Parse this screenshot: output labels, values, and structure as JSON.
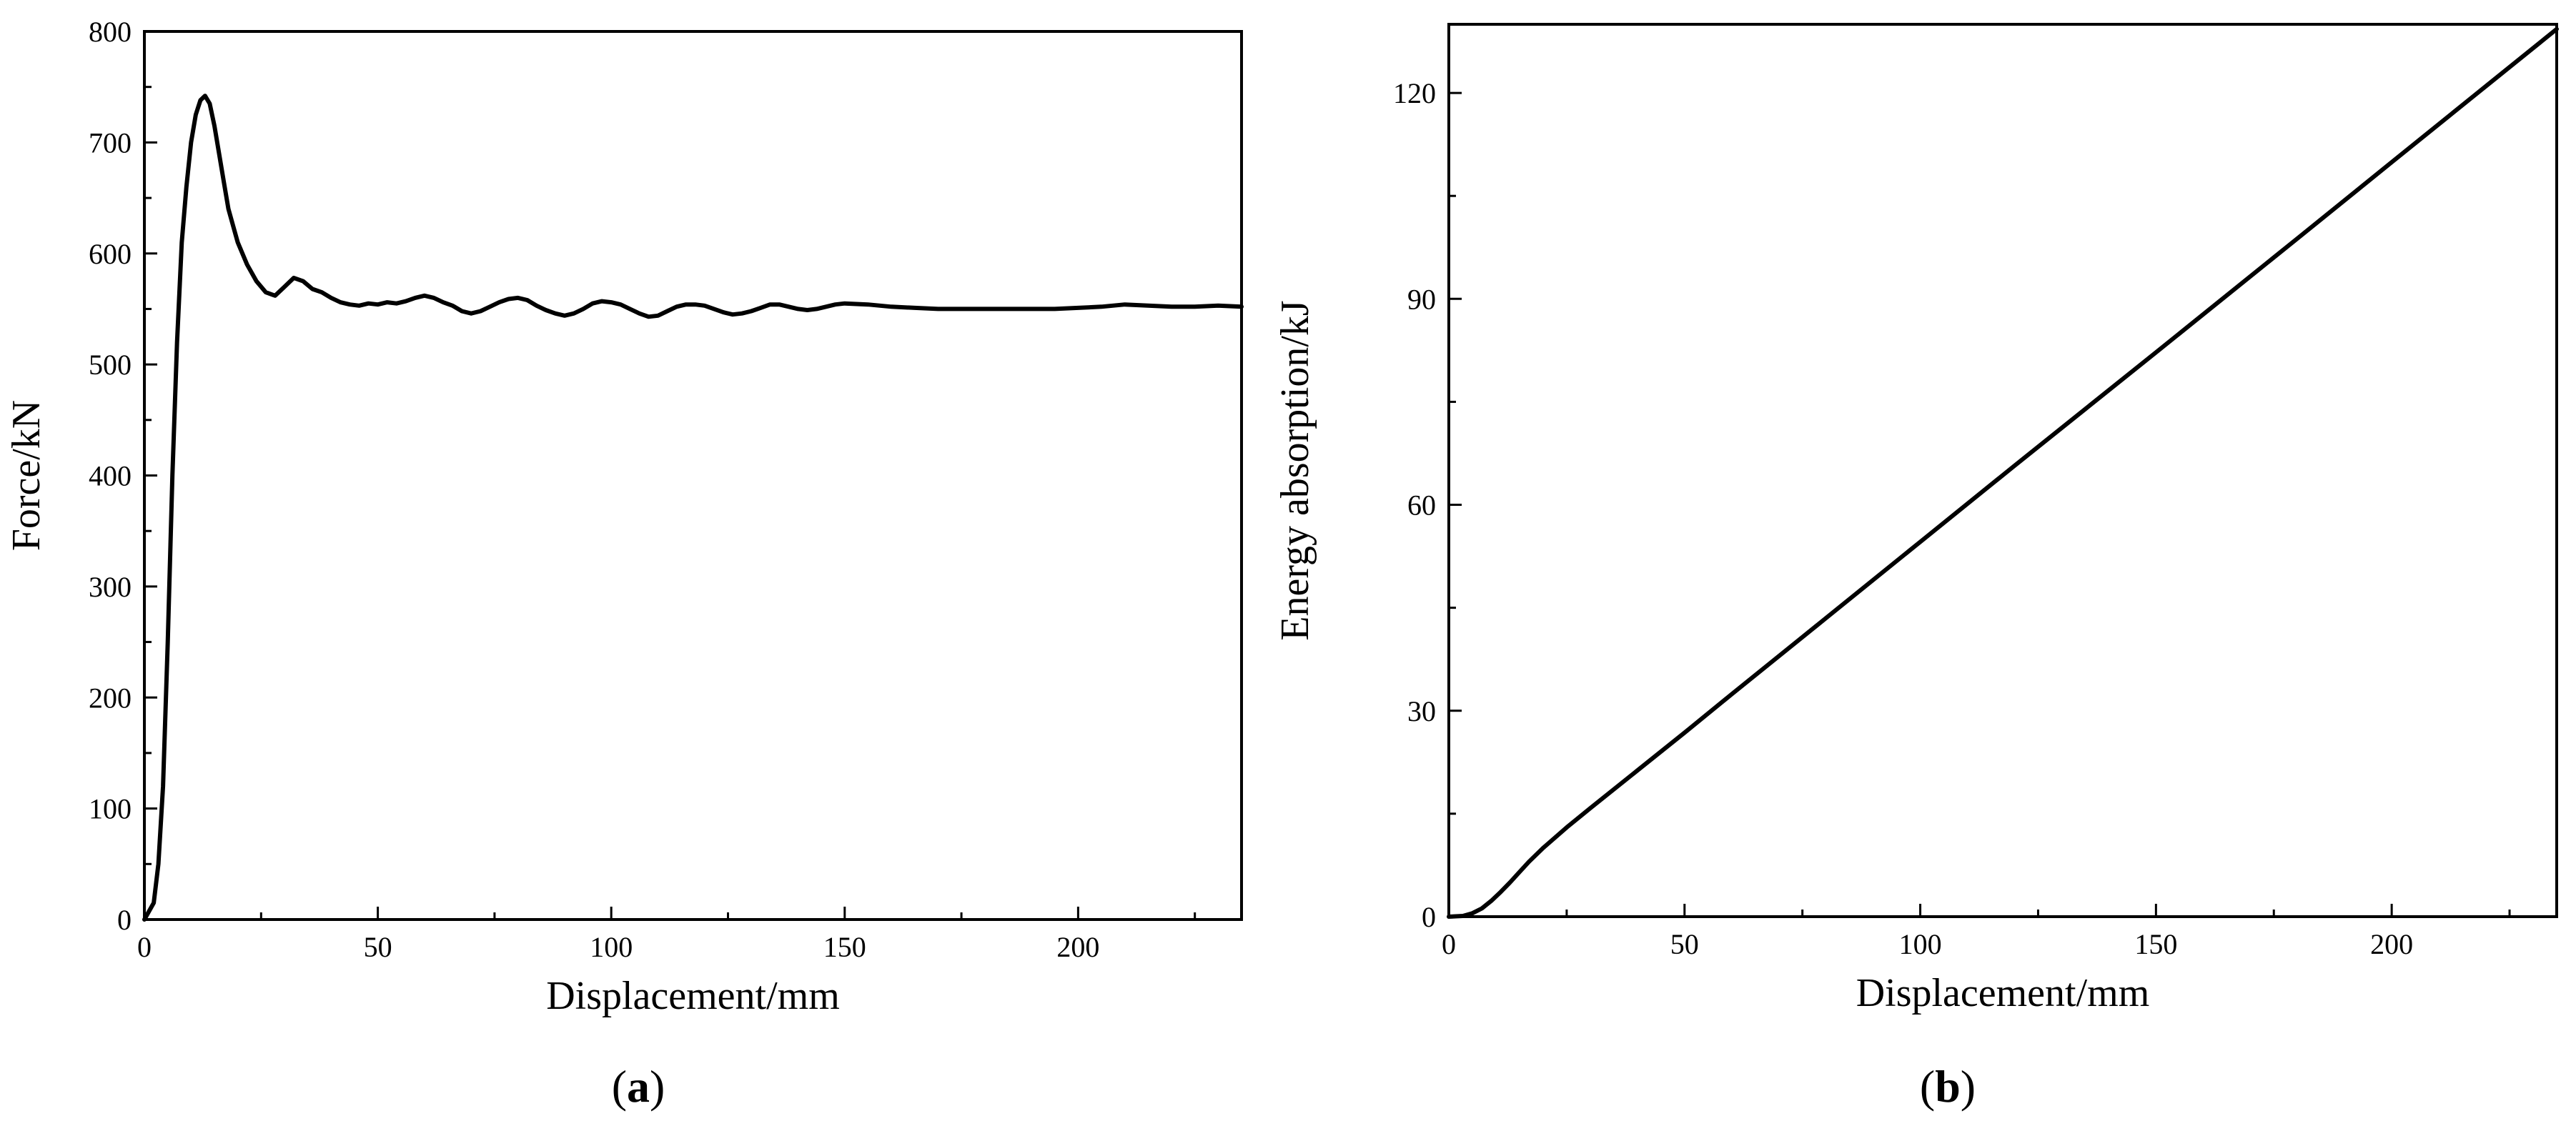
{
  "chart_data": [
    {
      "type": "line",
      "panel_label": "a",
      "xlabel": "Displacement/mm",
      "ylabel": "Force/kN",
      "xlim": [
        0,
        235
      ],
      "ylim": [
        0,
        800
      ],
      "xticks": [
        0,
        50,
        100,
        150,
        200
      ],
      "yticks": [
        0,
        100,
        200,
        300,
        400,
        500,
        600,
        700,
        800
      ],
      "grid": false,
      "series": [
        {
          "x": [
            0,
            2,
            3,
            4,
            5,
            6,
            7,
            8,
            9,
            10,
            11,
            12,
            13,
            14,
            15,
            16,
            17,
            18,
            19,
            20,
            22,
            24,
            26,
            28,
            30,
            32,
            34,
            36,
            38,
            40,
            42,
            44,
            46,
            48,
            50,
            52,
            54,
            56,
            58,
            60,
            62,
            64,
            66,
            68,
            70,
            72,
            74,
            76,
            78,
            80,
            82,
            84,
            86,
            88,
            90,
            92,
            94,
            96,
            98,
            100,
            102,
            104,
            106,
            108,
            110,
            112,
            114,
            116,
            118,
            120,
            122,
            124,
            126,
            128,
            130,
            132,
            134,
            136,
            138,
            140,
            142,
            144,
            146,
            148,
            150,
            155,
            160,
            165,
            170,
            175,
            180,
            185,
            190,
            195,
            200,
            205,
            210,
            215,
            220,
            225,
            230,
            235
          ],
          "y": [
            0,
            15,
            50,
            120,
            250,
            400,
            520,
            610,
            660,
            700,
            725,
            738,
            742,
            735,
            715,
            690,
            665,
            640,
            625,
            610,
            590,
            575,
            565,
            562,
            570,
            578,
            575,
            568,
            565,
            560,
            556,
            554,
            553,
            555,
            554,
            556,
            555,
            557,
            560,
            562,
            560,
            556,
            553,
            548,
            546,
            548,
            552,
            556,
            559,
            560,
            558,
            553,
            549,
            546,
            544,
            546,
            550,
            555,
            557,
            556,
            554,
            550,
            546,
            543,
            544,
            548,
            552,
            554,
            554,
            553,
            550,
            547,
            545,
            546,
            548,
            551,
            554,
            554,
            552,
            550,
            549,
            550,
            552,
            554,
            555,
            554,
            552,
            551,
            550,
            550,
            550,
            550,
            550,
            550,
            551,
            552,
            554,
            553,
            552,
            552,
            553,
            552
          ]
        }
      ]
    },
    {
      "type": "line",
      "panel_label": "b",
      "xlabel": "Displacement/mm",
      "ylabel": "Energy absorption/kJ",
      "xlim": [
        0,
        235
      ],
      "ylim": [
        0,
        130
      ],
      "xticks": [
        0,
        50,
        100,
        150,
        200
      ],
      "yticks": [
        0,
        30,
        60,
        90,
        120
      ],
      "grid": false,
      "series": [
        {
          "x": [
            0,
            3,
            5,
            7,
            9,
            11,
            13,
            15,
            17,
            20,
            25,
            30,
            40,
            50,
            60,
            80,
            100,
            120,
            150,
            180,
            200,
            220,
            235
          ],
          "y": [
            0,
            0.1,
            0.5,
            1.2,
            2.3,
            3.6,
            5.0,
            6.5,
            8.0,
            10.0,
            13.0,
            15.8,
            21.3,
            26.8,
            32.4,
            43.5,
            54.6,
            65.7,
            82.2,
            98.8,
            109.9,
            121.0,
            129.3
          ]
        }
      ]
    }
  ]
}
